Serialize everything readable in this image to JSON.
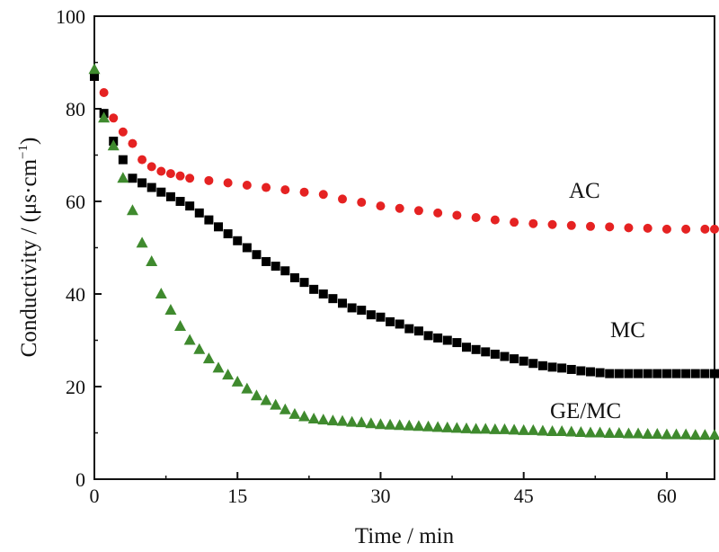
{
  "chart_data": {
    "type": "scatter",
    "title": "",
    "xlabel": "Time / min",
    "ylabel": "Conductivity / (μs·cm",
    "ylabel_sup": "−1",
    "ylabel_close": ")",
    "xlim": [
      0,
      65
    ],
    "ylim": [
      0,
      100
    ],
    "xticks": [
      0,
      15,
      30,
      45,
      60
    ],
    "yticks": [
      0,
      20,
      40,
      60,
      80,
      100
    ],
    "grid": false,
    "legend": "none",
    "series": [
      {
        "name": "AC",
        "color": "#e52222",
        "marker": "circle",
        "points": [
          [
            0,
            87
          ],
          [
            1,
            83.5
          ],
          [
            2,
            78
          ],
          [
            3,
            75
          ],
          [
            4,
            72.5
          ],
          [
            5,
            69
          ],
          [
            6,
            67.5
          ],
          [
            7,
            66.5
          ],
          [
            8,
            66
          ],
          [
            9,
            65.5
          ],
          [
            10,
            65
          ],
          [
            12,
            64.5
          ],
          [
            14,
            64
          ],
          [
            16,
            63.5
          ],
          [
            18,
            63
          ],
          [
            20,
            62.5
          ],
          [
            22,
            62
          ],
          [
            24,
            61.5
          ],
          [
            26,
            60.5
          ],
          [
            28,
            59.8
          ],
          [
            30,
            59
          ],
          [
            32,
            58.5
          ],
          [
            34,
            58
          ],
          [
            36,
            57.5
          ],
          [
            38,
            57
          ],
          [
            40,
            56.5
          ],
          [
            42,
            56
          ],
          [
            44,
            55.5
          ],
          [
            46,
            55.2
          ],
          [
            48,
            55
          ],
          [
            50,
            54.8
          ],
          [
            52,
            54.6
          ],
          [
            54,
            54.5
          ],
          [
            56,
            54.3
          ],
          [
            58,
            54.2
          ],
          [
            60,
            54
          ],
          [
            62,
            54
          ],
          [
            64,
            54
          ],
          [
            65,
            54
          ]
        ]
      },
      {
        "name": "MC",
        "color": "#000000",
        "marker": "square",
        "points": [
          [
            0,
            87
          ],
          [
            1,
            79
          ],
          [
            2,
            73
          ],
          [
            3,
            69
          ],
          [
            4,
            65
          ],
          [
            5,
            64
          ],
          [
            6,
            63
          ],
          [
            7,
            62
          ],
          [
            8,
            61
          ],
          [
            9,
            60
          ],
          [
            10,
            59
          ],
          [
            11,
            57.5
          ],
          [
            12,
            56
          ],
          [
            13,
            54.5
          ],
          [
            14,
            53
          ],
          [
            15,
            51.5
          ],
          [
            16,
            50
          ],
          [
            17,
            48.5
          ],
          [
            18,
            47
          ],
          [
            19,
            46
          ],
          [
            20,
            45
          ],
          [
            21,
            43.5
          ],
          [
            22,
            42.5
          ],
          [
            23,
            41
          ],
          [
            24,
            40
          ],
          [
            25,
            39
          ],
          [
            26,
            38
          ],
          [
            27,
            37
          ],
          [
            28,
            36.5
          ],
          [
            29,
            35.5
          ],
          [
            30,
            35
          ],
          [
            31,
            34
          ],
          [
            32,
            33.5
          ],
          [
            33,
            32.5
          ],
          [
            34,
            32
          ],
          [
            35,
            31
          ],
          [
            36,
            30.5
          ],
          [
            37,
            30
          ],
          [
            38,
            29.5
          ],
          [
            39,
            28.5
          ],
          [
            40,
            28
          ],
          [
            41,
            27.5
          ],
          [
            42,
            27
          ],
          [
            43,
            26.5
          ],
          [
            44,
            26
          ],
          [
            45,
            25.5
          ],
          [
            46,
            25
          ],
          [
            47,
            24.5
          ],
          [
            48,
            24.2
          ],
          [
            49,
            24
          ],
          [
            50,
            23.7
          ],
          [
            51,
            23.4
          ],
          [
            52,
            23.2
          ],
          [
            53,
            23
          ],
          [
            54,
            22.8
          ],
          [
            55,
            22.8
          ],
          [
            56,
            22.8
          ],
          [
            57,
            22.8
          ],
          [
            58,
            22.8
          ],
          [
            59,
            22.8
          ],
          [
            60,
            22.8
          ],
          [
            61,
            22.8
          ],
          [
            62,
            22.8
          ],
          [
            63,
            22.8
          ],
          [
            64,
            22.8
          ],
          [
            65,
            22.8
          ]
        ]
      },
      {
        "name": "GE/MC",
        "color": "#3f8a2e",
        "marker": "triangle",
        "points": [
          [
            0,
            88.5
          ],
          [
            1,
            78
          ],
          [
            2,
            72
          ],
          [
            3,
            65
          ],
          [
            4,
            58
          ],
          [
            5,
            51
          ],
          [
            6,
            47
          ],
          [
            7,
            40
          ],
          [
            8,
            36.5
          ],
          [
            9,
            33
          ],
          [
            10,
            30
          ],
          [
            11,
            28
          ],
          [
            12,
            26
          ],
          [
            13,
            24
          ],
          [
            14,
            22.5
          ],
          [
            15,
            21
          ],
          [
            16,
            19.5
          ],
          [
            17,
            18
          ],
          [
            18,
            17
          ],
          [
            19,
            16
          ],
          [
            20,
            15
          ],
          [
            21,
            14
          ],
          [
            22,
            13.5
          ],
          [
            23,
            13
          ],
          [
            24,
            12.8
          ],
          [
            25,
            12.6
          ],
          [
            26,
            12.5
          ],
          [
            27,
            12.3
          ],
          [
            28,
            12.2
          ],
          [
            29,
            12
          ],
          [
            30,
            11.8
          ],
          [
            31,
            11.7
          ],
          [
            32,
            11.6
          ],
          [
            33,
            11.5
          ],
          [
            34,
            11.4
          ],
          [
            35,
            11.3
          ],
          [
            36,
            11.2
          ],
          [
            37,
            11.1
          ],
          [
            38,
            11
          ],
          [
            39,
            10.9
          ],
          [
            40,
            10.8
          ],
          [
            41,
            10.8
          ],
          [
            42,
            10.7
          ],
          [
            43,
            10.7
          ],
          [
            44,
            10.6
          ],
          [
            45,
            10.5
          ],
          [
            46,
            10.5
          ],
          [
            47,
            10.4
          ],
          [
            48,
            10.3
          ],
          [
            49,
            10.3
          ],
          [
            50,
            10.2
          ],
          [
            51,
            10.1
          ],
          [
            52,
            10
          ],
          [
            53,
            10
          ],
          [
            54,
            9.9
          ],
          [
            55,
            9.9
          ],
          [
            56,
            9.8
          ],
          [
            57,
            9.8
          ],
          [
            58,
            9.7
          ],
          [
            59,
            9.7
          ],
          [
            60,
            9.6
          ],
          [
            61,
            9.6
          ],
          [
            62,
            9.6
          ],
          [
            63,
            9.5
          ],
          [
            64,
            9.5
          ],
          [
            65,
            9.5
          ]
        ]
      }
    ]
  }
}
